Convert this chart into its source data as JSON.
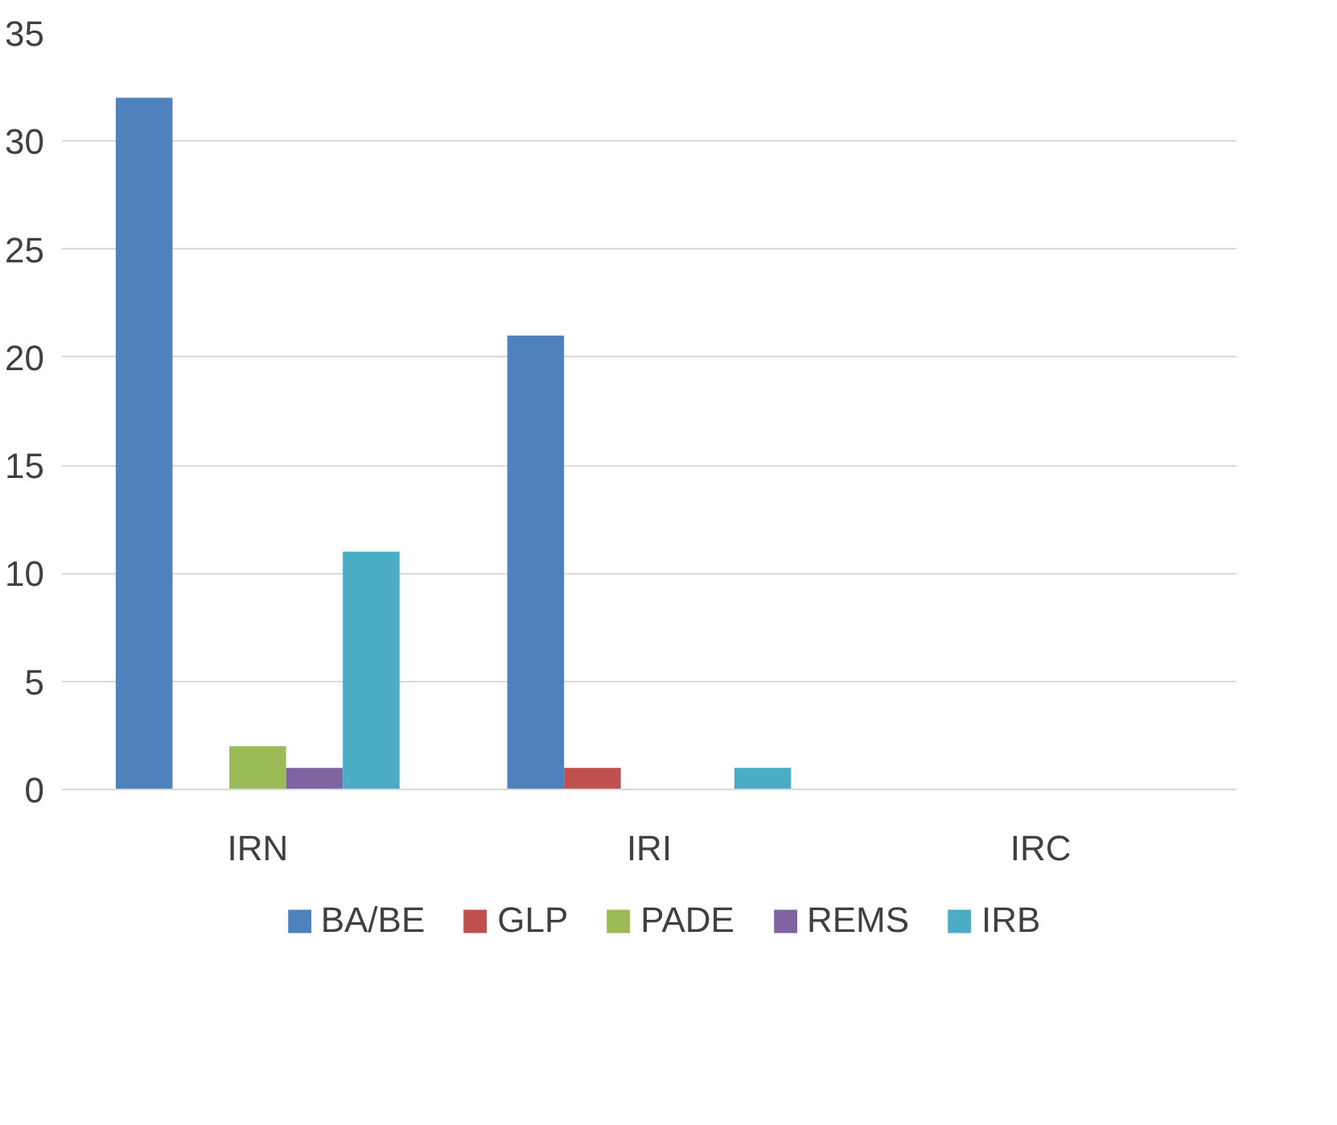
{
  "chart_data": {
    "type": "bar",
    "categories": [
      "IRN",
      "IRI",
      "IRC"
    ],
    "series": [
      {
        "name": "BA/BE",
        "color": "#4f81bd",
        "values": [
          32,
          21,
          0
        ]
      },
      {
        "name": "GLP",
        "color": "#c0504d",
        "values": [
          0,
          1,
          0
        ]
      },
      {
        "name": "PADE",
        "color": "#9bbb59",
        "values": [
          2,
          0,
          0
        ]
      },
      {
        "name": "REMS",
        "color": "#8064a2",
        "values": [
          1,
          0,
          0
        ]
      },
      {
        "name": "IRB",
        "color": "#4bacc6",
        "values": [
          11,
          1,
          0
        ]
      }
    ],
    "ylim": [
      0,
      35
    ],
    "yticks": [
      0,
      5,
      10,
      15,
      20,
      25,
      30,
      35
    ],
    "grid": "y",
    "legend": "bottom"
  }
}
